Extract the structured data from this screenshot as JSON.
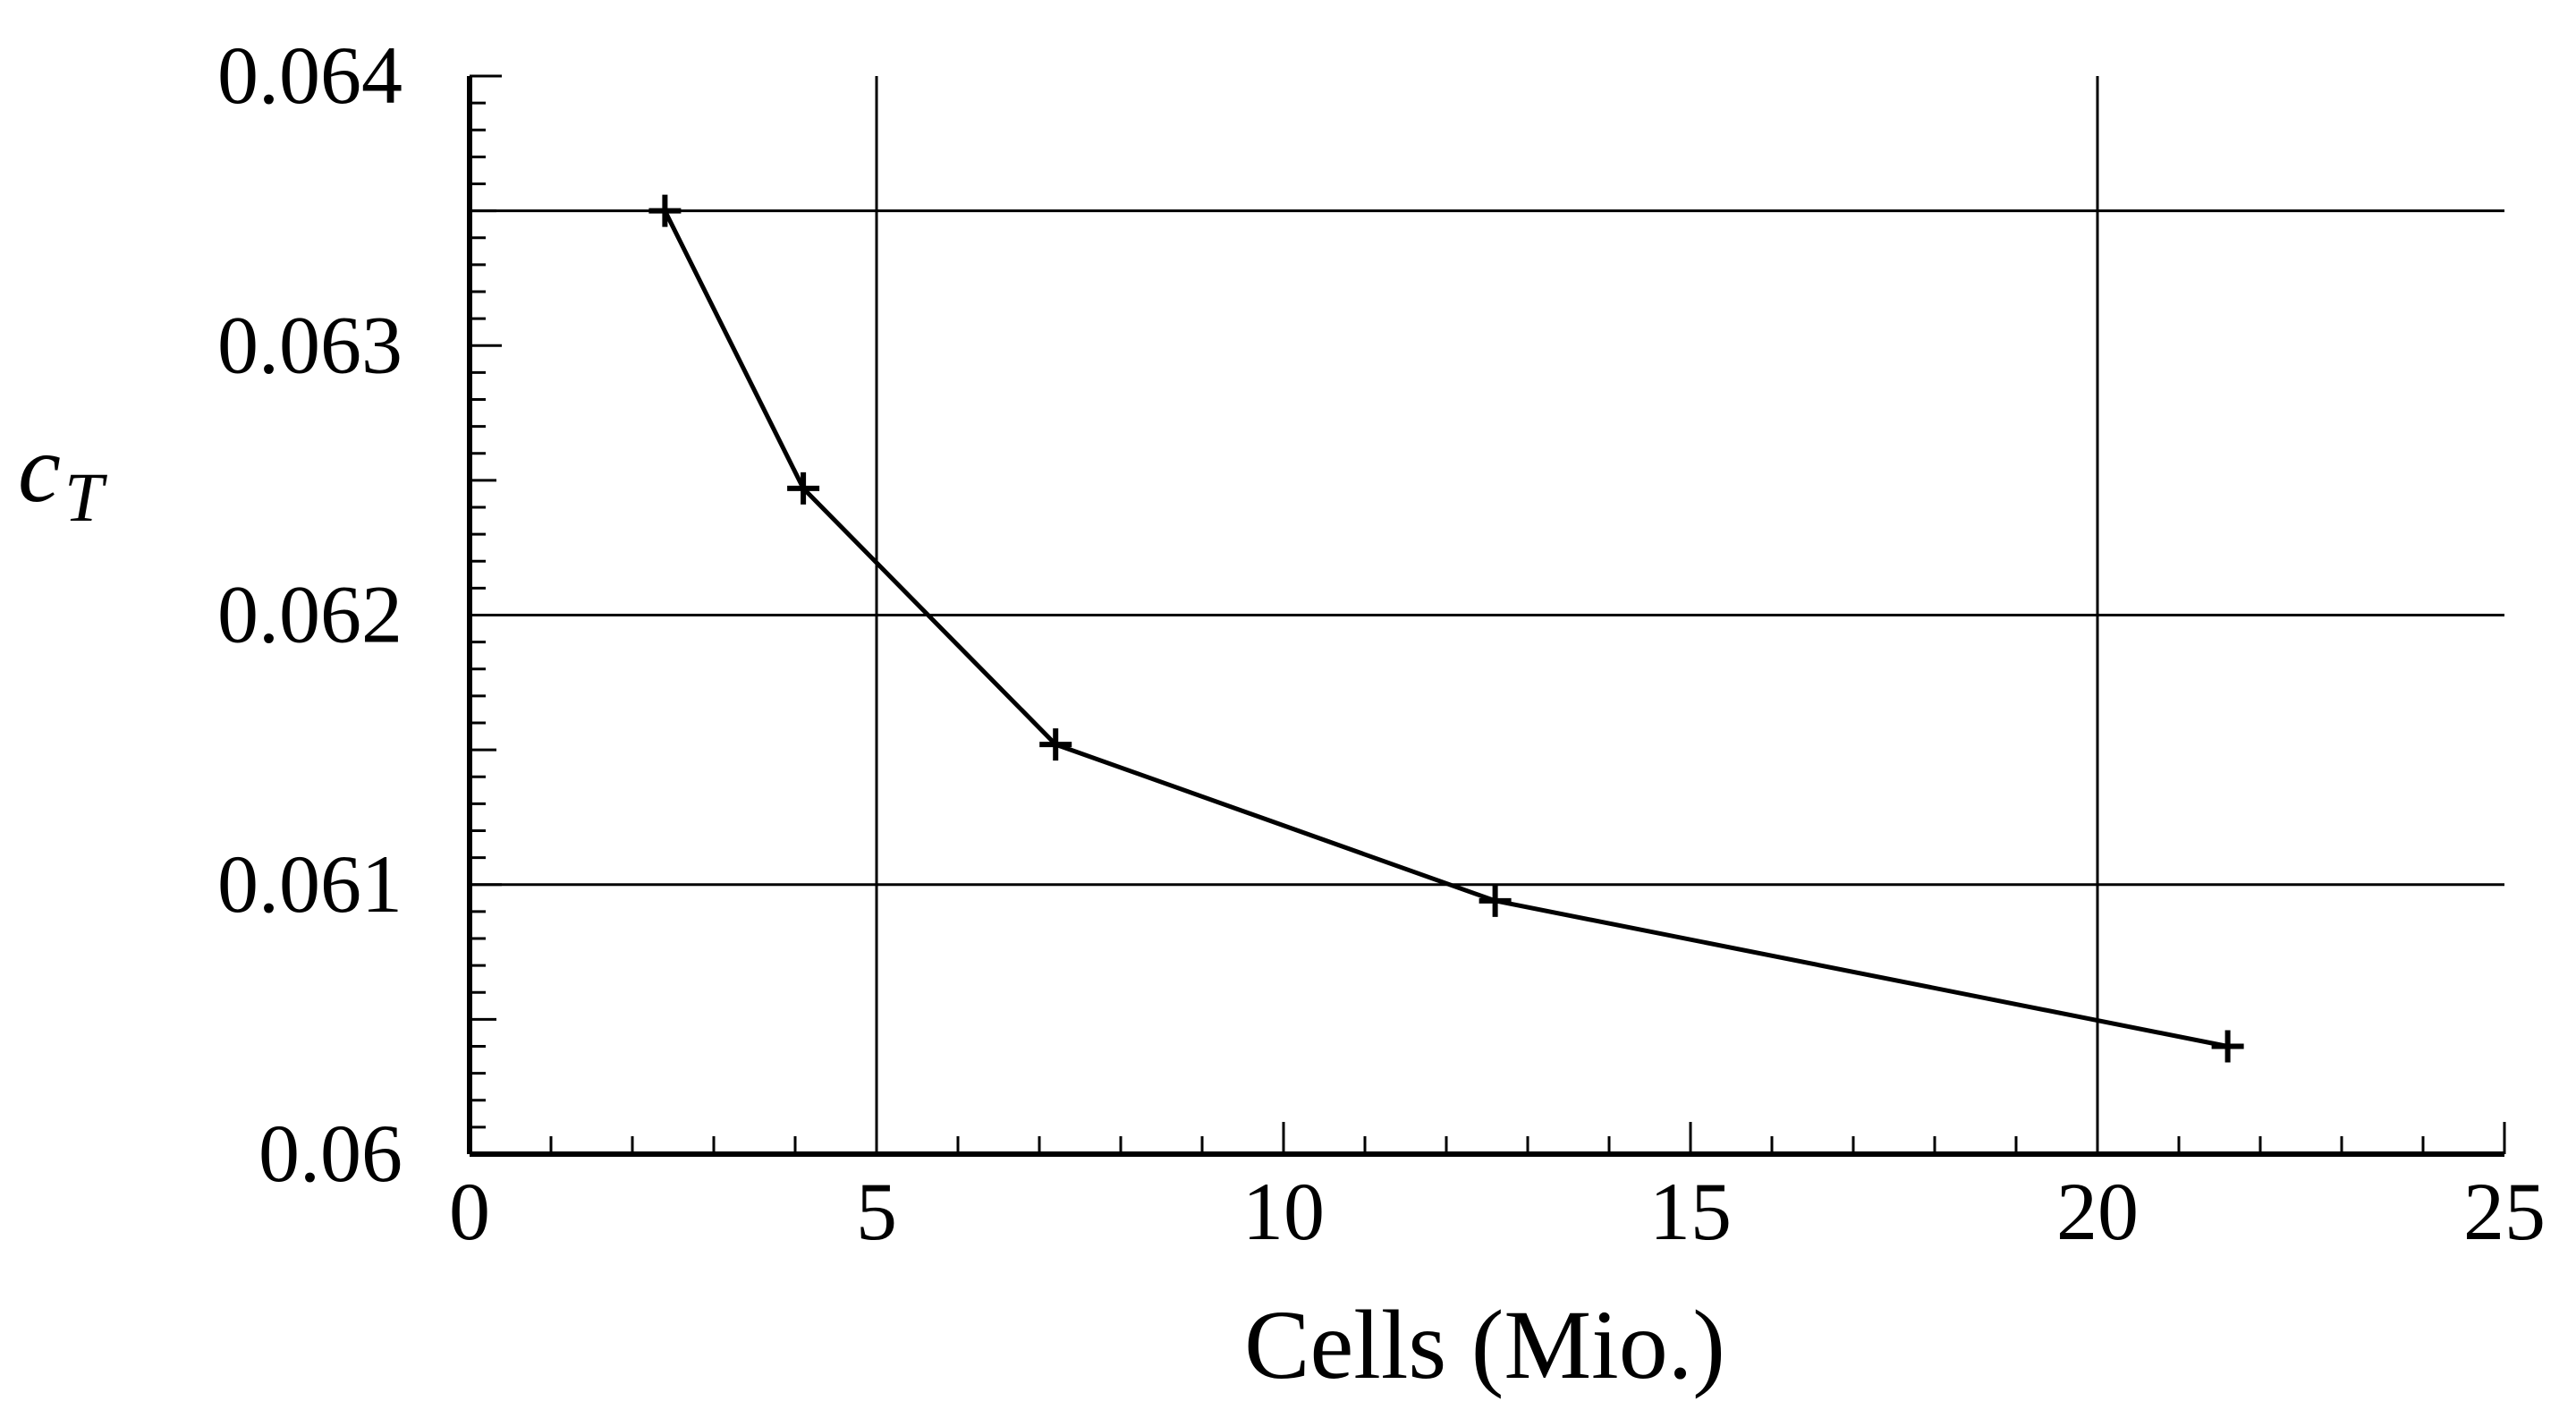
{
  "chart_data": {
    "type": "line",
    "xlabel": "Cells (Mio.)",
    "ylabel": {
      "main": "c",
      "sub": "T"
    },
    "xlim": [
      0,
      25
    ],
    "ylim": [
      0.06,
      0.064
    ],
    "x_ticks": [
      0,
      5,
      10,
      15,
      20,
      25
    ],
    "x_tick_labels": [
      "0",
      "5",
      "10",
      "15",
      "20",
      "25"
    ],
    "y_ticks": [
      0.06,
      0.061,
      0.062,
      0.063,
      0.064
    ],
    "y_tick_labels": [
      "0.06",
      "0.061",
      "0.062",
      "0.063",
      "0.064"
    ],
    "x_minor_step": 1,
    "y_minor_step": 0.0001,
    "gridlines_x": [
      5,
      20
    ],
    "gridlines_y": [
      0.0635,
      0.062,
      0.061
    ],
    "marker": "plus",
    "series": [
      {
        "x": [
          2.4,
          4.1,
          7.2,
          12.6,
          21.6
        ],
        "y": [
          0.0635,
          0.06247,
          0.06152,
          0.06094,
          0.0604
        ]
      }
    ],
    "line_color": "#000000"
  }
}
